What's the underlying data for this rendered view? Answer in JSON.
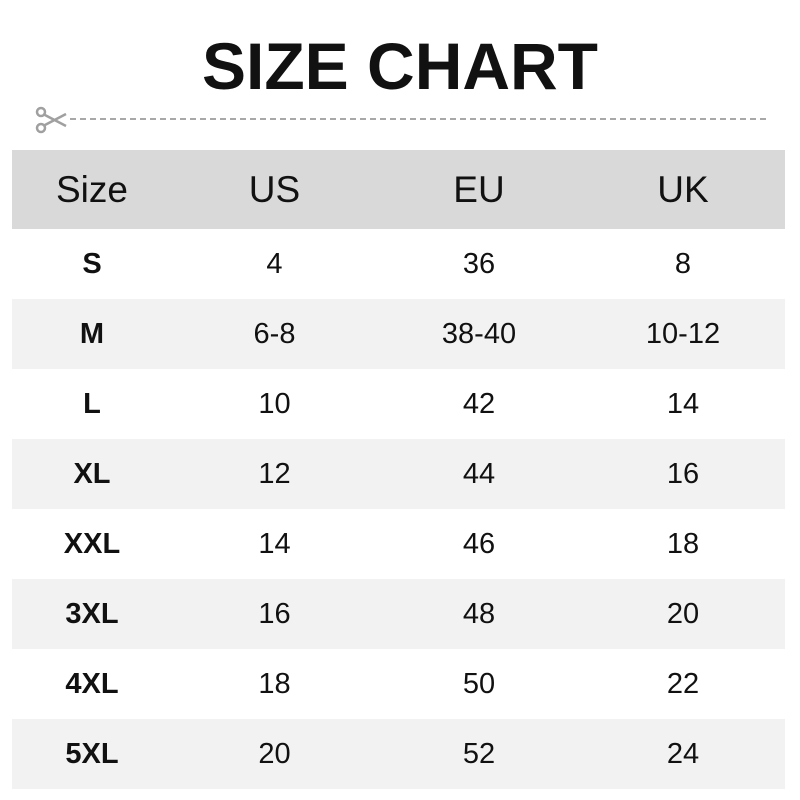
{
  "title": "SIZE CHART",
  "cut_icon": "scissors-icon",
  "colors": {
    "header_bg": "#d9d9d9",
    "alt_row_bg": "#f2f2f2",
    "dash": "#a8a8a8"
  },
  "table": {
    "headers": [
      "Size",
      "US",
      "EU",
      "UK"
    ],
    "rows": [
      [
        "S",
        "4",
        "36",
        "8"
      ],
      [
        "M",
        "6-8",
        "38-40",
        "10-12"
      ],
      [
        "L",
        "10",
        "42",
        "14"
      ],
      [
        "XL",
        "12",
        "44",
        "16"
      ],
      [
        "XXL",
        "14",
        "46",
        "18"
      ],
      [
        "3XL",
        "16",
        "48",
        "20"
      ],
      [
        "4XL",
        "18",
        "50",
        "22"
      ],
      [
        "5XL",
        "20",
        "52",
        "24"
      ]
    ]
  }
}
